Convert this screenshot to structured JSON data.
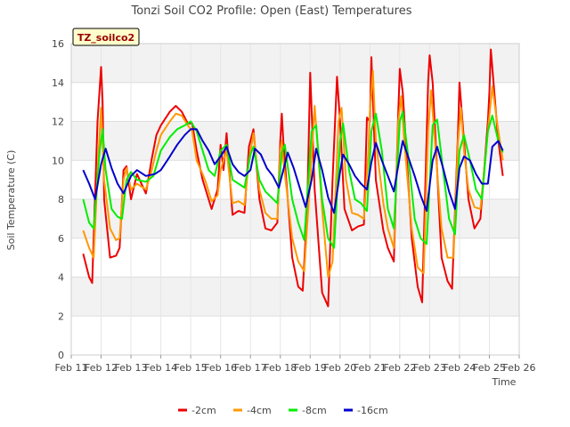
{
  "chart_data": {
    "type": "line",
    "title": "Tonzi Soil CO2 Profile: Open (East) Temperatures",
    "xlabel": "Time",
    "ylabel": "Soil Temperature (C)",
    "annotation": "TZ_soilco2",
    "xlim": [
      11,
      26
    ],
    "ylim": [
      0,
      16
    ],
    "y_ticks": [
      0,
      2,
      4,
      6,
      8,
      10,
      12,
      14,
      16
    ],
    "x_ticks": [
      11,
      12,
      13,
      14,
      15,
      16,
      17,
      18,
      19,
      20,
      21,
      22,
      23,
      24,
      25,
      26
    ],
    "x_tick_labels": [
      "Feb 11",
      "Feb 12",
      "Feb 13",
      "Feb 14",
      "Feb 15",
      "Feb 16",
      "Feb 17",
      "Feb 18",
      "Feb 19",
      "Feb 20",
      "Feb 21",
      "Feb 22",
      "Feb 23",
      "Feb 24",
      "Feb 25",
      "Feb 26"
    ],
    "legend_position": "bottom-center",
    "series": [
      {
        "name": "-2cm",
        "color": "#ee0000",
        "x": [
          11.4,
          11.6,
          11.7,
          11.88,
          12.0,
          12.05,
          12.1,
          12.3,
          12.5,
          12.62,
          12.75,
          12.85,
          13.0,
          13.2,
          13.5,
          13.7,
          13.85,
          14.0,
          14.3,
          14.5,
          14.7,
          14.9,
          15.05,
          15.2,
          15.4,
          15.5,
          15.7,
          15.9,
          16.0,
          16.1,
          16.2,
          16.4,
          16.6,
          16.8,
          16.95,
          17.1,
          17.3,
          17.5,
          17.7,
          17.9,
          18.0,
          18.05,
          18.1,
          18.4,
          18.6,
          18.75,
          18.9,
          19.0,
          19.15,
          19.4,
          19.6,
          19.75,
          19.9,
          20.0,
          20.15,
          20.4,
          20.6,
          20.8,
          20.9,
          21.0,
          21.05,
          21.2,
          21.45,
          21.6,
          21.8,
          21.95,
          22.0,
          22.1,
          22.4,
          22.6,
          22.75,
          22.95,
          23.0,
          23.1,
          23.4,
          23.6,
          23.75,
          23.95,
          24.0,
          24.1,
          24.3,
          24.5,
          24.7,
          24.95,
          25.0,
          25.05,
          25.3,
          25.45
        ],
        "values": [
          5.2,
          4.0,
          3.7,
          12.0,
          14.8,
          13.0,
          8.0,
          5.0,
          5.1,
          5.5,
          9.5,
          9.7,
          8.0,
          9.3,
          8.3,
          10.1,
          11.3,
          11.8,
          12.5,
          12.8,
          12.5,
          11.9,
          11.9,
          10.5,
          9.0,
          8.5,
          7.5,
          8.5,
          10.8,
          9.5,
          11.4,
          7.2,
          7.4,
          7.3,
          10.7,
          11.6,
          8.0,
          6.5,
          6.4,
          6.8,
          11.0,
          12.4,
          11.0,
          5.0,
          3.5,
          3.3,
          7.5,
          14.5,
          8.5,
          3.2,
          2.5,
          9.0,
          14.3,
          12.0,
          7.5,
          6.4,
          6.6,
          6.7,
          12.2,
          12.0,
          15.3,
          9.0,
          6.4,
          5.5,
          4.8,
          12.5,
          14.7,
          13.5,
          6.0,
          3.5,
          2.7,
          14.0,
          15.4,
          14.0,
          5.0,
          3.8,
          3.4,
          11.5,
          14.0,
          12.0,
          8.0,
          6.5,
          7.0,
          12.0,
          13.5,
          15.7,
          11.0,
          9.2
        ]
      },
      {
        "name": "-4cm",
        "color": "#ff9900",
        "x": [
          11.4,
          11.6,
          11.75,
          11.9,
          12.0,
          12.1,
          12.3,
          12.5,
          12.62,
          12.75,
          12.85,
          13.0,
          13.2,
          13.5,
          13.7,
          13.85,
          14.0,
          14.3,
          14.5,
          14.7,
          14.9,
          15.05,
          15.2,
          15.4,
          15.5,
          15.7,
          15.9,
          16.0,
          16.1,
          16.2,
          16.4,
          16.6,
          16.8,
          16.95,
          17.1,
          17.3,
          17.5,
          17.7,
          17.9,
          18.0,
          18.05,
          18.1,
          18.4,
          18.6,
          18.8,
          19.0,
          19.15,
          19.4,
          19.6,
          19.75,
          19.95,
          20.05,
          20.2,
          20.4,
          20.6,
          20.8,
          20.95,
          21.0,
          21.1,
          21.2,
          21.45,
          21.6,
          21.8,
          21.95,
          22.05,
          22.15,
          22.4,
          22.6,
          22.8,
          22.95,
          23.05,
          23.15,
          23.4,
          23.6,
          23.8,
          23.95,
          24.05,
          24.15,
          24.3,
          24.5,
          24.7,
          24.95,
          25.0,
          25.1,
          25.3,
          25.45
        ],
        "values": [
          6.4,
          5.5,
          5.0,
          10.0,
          12.7,
          9.0,
          6.5,
          5.9,
          6.0,
          9.0,
          9.6,
          8.5,
          8.8,
          8.5,
          9.5,
          10.5,
          11.3,
          12.0,
          12.4,
          12.3,
          11.8,
          11.5,
          10.0,
          9.3,
          8.9,
          7.9,
          8.2,
          9.5,
          10.0,
          10.5,
          7.8,
          7.9,
          7.7,
          10.0,
          11.4,
          8.5,
          7.3,
          7.0,
          7.0,
          10.5,
          11.0,
          10.0,
          6.0,
          4.8,
          4.3,
          9.0,
          12.8,
          7.5,
          4.0,
          4.8,
          12.0,
          12.7,
          9.0,
          7.3,
          7.2,
          7.0,
          10.5,
          12.5,
          14.6,
          11.0,
          7.8,
          6.5,
          5.5,
          12.0,
          13.3,
          11.0,
          6.5,
          4.5,
          4.2,
          11.5,
          13.6,
          11.5,
          6.5,
          5.0,
          5.0,
          11.0,
          12.7,
          10.5,
          8.5,
          7.6,
          7.5,
          11.5,
          12.3,
          13.8,
          11.5,
          10.0
        ]
      },
      {
        "name": "-8cm",
        "color": "#00ee00",
        "x": [
          11.4,
          11.6,
          11.75,
          11.95,
          12.05,
          12.15,
          12.35,
          12.55,
          12.7,
          12.85,
          13.0,
          13.2,
          13.5,
          13.75,
          14.0,
          14.3,
          14.55,
          14.8,
          15.0,
          15.2,
          15.4,
          15.6,
          15.8,
          16.0,
          16.2,
          16.4,
          16.6,
          16.8,
          17.0,
          17.1,
          17.3,
          17.5,
          17.7,
          17.9,
          18.05,
          18.15,
          18.4,
          18.6,
          18.8,
          19.05,
          19.2,
          19.4,
          19.6,
          19.8,
          20.0,
          20.1,
          20.3,
          20.5,
          20.7,
          20.9,
          21.05,
          21.2,
          21.4,
          21.6,
          21.8,
          22.0,
          22.1,
          22.3,
          22.5,
          22.7,
          22.9,
          23.1,
          23.25,
          23.45,
          23.65,
          23.85,
          24.0,
          24.15,
          24.35,
          24.55,
          24.75,
          24.95,
          25.1,
          25.3,
          25.45
        ],
        "values": [
          8.0,
          6.8,
          6.5,
          10.5,
          11.6,
          9.5,
          7.5,
          7.1,
          7.0,
          9.0,
          9.4,
          9.0,
          8.9,
          9.2,
          10.5,
          11.2,
          11.6,
          11.8,
          12.0,
          11.5,
          10.5,
          9.5,
          9.2,
          10.5,
          10.8,
          9.0,
          8.8,
          8.6,
          10.3,
          10.7,
          9.0,
          8.4,
          8.1,
          7.8,
          10.4,
          10.8,
          8.0,
          6.8,
          5.9,
          11.5,
          11.8,
          8.0,
          6.0,
          5.5,
          11.0,
          11.9,
          9.5,
          8.0,
          7.8,
          7.4,
          11.5,
          12.4,
          10.5,
          7.5,
          6.5,
          12.0,
          12.5,
          10.0,
          7.0,
          6.0,
          5.7,
          11.8,
          12.1,
          9.5,
          7.0,
          6.2,
          10.5,
          11.3,
          10.0,
          8.5,
          8.0,
          11.5,
          12.3,
          11.0,
          10.4
        ]
      },
      {
        "name": "-16cm",
        "color": "#0000cc",
        "x": [
          11.4,
          11.6,
          11.8,
          12.0,
          12.15,
          12.35,
          12.55,
          12.75,
          13.0,
          13.2,
          13.5,
          13.8,
          14.0,
          14.3,
          14.55,
          14.8,
          15.0,
          15.2,
          15.4,
          15.6,
          15.8,
          16.0,
          16.2,
          16.4,
          16.6,
          16.8,
          17.0,
          17.15,
          17.35,
          17.55,
          17.75,
          17.95,
          18.1,
          18.25,
          18.45,
          18.65,
          18.85,
          19.05,
          19.2,
          19.4,
          19.6,
          19.8,
          20.0,
          20.1,
          20.3,
          20.5,
          20.7,
          20.9,
          21.05,
          21.2,
          21.4,
          21.6,
          21.8,
          22.0,
          22.1,
          22.3,
          22.5,
          22.7,
          22.9,
          23.1,
          23.25,
          23.45,
          23.65,
          23.85,
          24.0,
          24.15,
          24.35,
          24.55,
          24.75,
          24.95,
          25.1,
          25.3,
          25.45
        ],
        "values": [
          9.5,
          8.8,
          8.0,
          9.8,
          10.6,
          9.6,
          8.8,
          8.3,
          9.2,
          9.5,
          9.2,
          9.3,
          9.5,
          10.2,
          10.8,
          11.3,
          11.6,
          11.6,
          11.0,
          10.5,
          9.8,
          10.2,
          10.7,
          9.8,
          9.4,
          9.2,
          9.5,
          10.6,
          10.3,
          9.6,
          9.2,
          8.6,
          9.5,
          10.4,
          9.6,
          8.6,
          7.6,
          9.0,
          10.6,
          9.5,
          8.1,
          7.3,
          9.4,
          10.3,
          9.8,
          9.2,
          8.8,
          8.5,
          9.9,
          10.9,
          10.0,
          9.2,
          8.4,
          10.2,
          11.0,
          10.1,
          9.2,
          8.2,
          7.4,
          10.0,
          10.7,
          9.6,
          8.4,
          7.5,
          9.6,
          10.2,
          10.0,
          9.3,
          8.8,
          8.8,
          10.7,
          11.0,
          10.5
        ]
      }
    ]
  }
}
